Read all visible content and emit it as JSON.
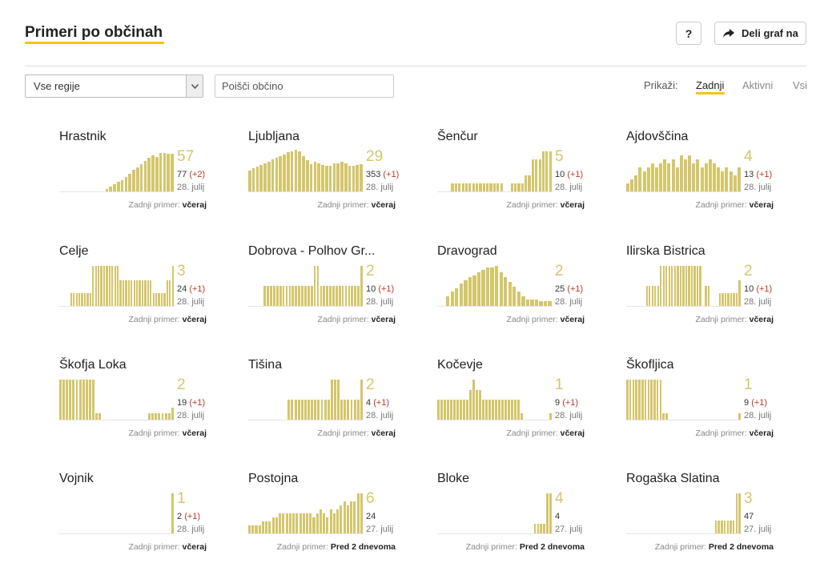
{
  "header": {
    "title": "Primeri po občinah",
    "help_label": "?",
    "share_label": "Deli graf na"
  },
  "filters": {
    "region_select_value": "Vse regije",
    "search_placeholder": "Poišči občino",
    "show_label": "Prikaži:",
    "options": [
      "Zadnji",
      "Aktivni",
      "Vsi"
    ],
    "active_option": "Zadnji"
  },
  "colors": {
    "accent": "#f5c518",
    "bar": "#d4c66c",
    "delta": "#c0392b"
  },
  "icons": {
    "share": "share-arrow-icon",
    "dropdown": "chevron-down-icon"
  },
  "cards": [
    {
      "name": "Hrastnik",
      "big": "57",
      "total": "77",
      "delta": "(+2)",
      "date": "28. julij",
      "last_label": "Zadnji primer:",
      "last_value": "včeraj",
      "bars": [
        0,
        0,
        0,
        0,
        0,
        0,
        0,
        0,
        0,
        0,
        0,
        0,
        3,
        6,
        9,
        12,
        14,
        18,
        22,
        27,
        30,
        34,
        38,
        42,
        45,
        43,
        48,
        48,
        47,
        47
      ]
    },
    {
      "name": "Ljubljana",
      "big": "29",
      "total": "353",
      "delta": "(+1)",
      "date": "28. julij",
      "last_label": "Zadnji primer:",
      "last_value": "včeraj",
      "bars": [
        26,
        29,
        31,
        33,
        35,
        37,
        40,
        42,
        44,
        46,
        49,
        50,
        52,
        50,
        44,
        39,
        34,
        37,
        35,
        33,
        32,
        32,
        35,
        35,
        37,
        35,
        32,
        32,
        33,
        34
      ]
    },
    {
      "name": "Šenčur",
      "big": "5",
      "total": "10",
      "delta": "(+1)",
      "date": "28. julij",
      "last_label": "Zadnji primer:",
      "last_value": "včeraj",
      "bars": [
        0,
        0,
        0,
        0,
        10,
        10,
        10,
        10,
        10,
        10,
        10,
        10,
        10,
        10,
        10,
        10,
        10,
        10,
        10,
        0,
        0,
        10,
        10,
        10,
        10,
        20,
        20,
        40,
        40,
        40,
        50,
        50,
        50
      ]
    },
    {
      "name": "Ajdovščina",
      "big": "4",
      "total": "13",
      "delta": "(+1)",
      "date": "28. julij",
      "last_label": "Zadnji primer:",
      "last_value": "včeraj",
      "bars": [
        10,
        15,
        20,
        30,
        25,
        30,
        35,
        30,
        35,
        40,
        35,
        40,
        30,
        45,
        40,
        45,
        35,
        40,
        30,
        35,
        40,
        35,
        30,
        25,
        30,
        25,
        20,
        30
      ]
    },
    {
      "name": "Celje",
      "big": "3",
      "total": "24",
      "delta": "(+1)",
      "date": "28. julij",
      "last_label": "Zadnji primer:",
      "last_value": "včeraj",
      "bars": [
        0,
        0,
        0,
        0,
        16,
        16,
        16,
        16,
        16,
        16,
        16,
        16,
        50,
        50,
        50,
        50,
        50,
        50,
        50,
        50,
        50,
        50,
        32,
        32,
        32,
        32,
        32,
        32,
        32,
        32,
        32,
        32,
        32,
        32,
        16,
        16,
        16,
        16,
        16,
        32,
        32,
        50
      ]
    },
    {
      "name": "Dobrova - Polhov Gr...",
      "big": "2",
      "total": "10",
      "delta": "(+1)",
      "date": "28. julij",
      "last_label": "Zadnji primer:",
      "last_value": "včeraj",
      "bars": [
        0,
        0,
        0,
        0,
        0,
        25,
        25,
        25,
        25,
        25,
        25,
        25,
        25,
        25,
        25,
        25,
        25,
        25,
        25,
        25,
        25,
        50,
        50,
        25,
        25,
        25,
        25,
        25,
        25,
        25,
        25,
        25,
        25,
        25,
        25,
        25,
        50
      ]
    },
    {
      "name": "Dravograd",
      "big": "2",
      "total": "25",
      "delta": "(+1)",
      "date": "28. julij",
      "last_label": "Zadnji primer:",
      "last_value": "včeraj",
      "bars": [
        0,
        0,
        12,
        18,
        22,
        28,
        32,
        36,
        38,
        42,
        45,
        48,
        48,
        50,
        42,
        36,
        30,
        24,
        18,
        12,
        8,
        8,
        8,
        6,
        6,
        6
      ]
    },
    {
      "name": "Ilirska Bistrica",
      "big": "2",
      "total": "10",
      "delta": "(+1)",
      "date": "28. julij",
      "last_label": "Zadnji primer:",
      "last_value": "včeraj",
      "bars": [
        0,
        0,
        0,
        0,
        0,
        0,
        0,
        25,
        25,
        25,
        25,
        25,
        50,
        50,
        50,
        50,
        50,
        50,
        50,
        50,
        50,
        50,
        50,
        50,
        50,
        50,
        50,
        0,
        25,
        25,
        0,
        0,
        0,
        16,
        16,
        16,
        16,
        16,
        16,
        16,
        32
      ]
    },
    {
      "name": "Škofja Loka",
      "big": "2",
      "total": "19",
      "delta": "(+1)",
      "date": "28. julij",
      "last_label": "Zadnji primer:",
      "last_value": "včeraj",
      "bars": [
        50,
        50,
        50,
        50,
        50,
        50,
        50,
        50,
        50,
        50,
        50,
        8,
        8,
        0,
        0,
        0,
        0,
        0,
        0,
        0,
        0,
        0,
        0,
        0,
        0,
        0,
        0,
        8,
        8,
        8,
        8,
        8,
        8,
        8,
        15
      ]
    },
    {
      "name": "Tišina",
      "big": "2",
      "total": "4",
      "delta": "(+1)",
      "date": "28. julij",
      "last_label": "Zadnji primer:",
      "last_value": "včeraj",
      "bars": [
        0,
        0,
        0,
        0,
        0,
        0,
        0,
        0,
        0,
        0,
        0,
        0,
        25,
        25,
        25,
        25,
        25,
        25,
        25,
        25,
        25,
        25,
        25,
        25,
        25,
        50,
        50,
        50,
        25,
        25,
        25,
        25,
        25,
        25,
        50
      ]
    },
    {
      "name": "Kočevje",
      "big": "1",
      "total": "9",
      "delta": "(+1)",
      "date": "28. julij",
      "last_label": "Zadnji primer:",
      "last_value": "včeraj",
      "bars": [
        25,
        25,
        25,
        25,
        25,
        25,
        25,
        25,
        25,
        25,
        37,
        50,
        37,
        37,
        25,
        25,
        25,
        25,
        25,
        25,
        25,
        25,
        25,
        25,
        25,
        25,
        8,
        0,
        0,
        0,
        0,
        0,
        0,
        0,
        0,
        8
      ]
    },
    {
      "name": "Škofljica",
      "big": "1",
      "total": "9",
      "delta": "(+1)",
      "date": "28. julij",
      "last_label": "Zadnji primer:",
      "last_value": "včeraj",
      "bars": [
        50,
        50,
        50,
        50,
        50,
        50,
        50,
        50,
        50,
        50,
        50,
        50,
        8,
        8,
        0,
        0,
        0,
        0,
        0,
        0,
        0,
        0,
        0,
        0,
        0,
        0,
        0,
        0,
        0,
        0,
        0,
        0,
        0,
        0,
        0,
        0,
        0,
        8
      ]
    },
    {
      "name": "Vojnik",
      "big": "1",
      "total": "2",
      "delta": "(+1)",
      "date": "28. julij",
      "last_label": "Zadnji primer:",
      "last_value": "včeraj",
      "bars": [
        0,
        0,
        0,
        0,
        0,
        0,
        0,
        0,
        0,
        0,
        0,
        0,
        0,
        0,
        0,
        0,
        0,
        0,
        0,
        0,
        0,
        0,
        0,
        0,
        0,
        0,
        0,
        0,
        0,
        0,
        0,
        0,
        0,
        0,
        0,
        50
      ]
    },
    {
      "name": "Postojna",
      "big": "6",
      "total": "24",
      "delta": "",
      "date": "27. julij",
      "last_label": "Zadnji primer:",
      "last_value": "Pred 2 dnevoma",
      "bars": [
        10,
        10,
        10,
        10,
        15,
        15,
        15,
        20,
        20,
        25,
        25,
        25,
        25,
        25,
        25,
        25,
        25,
        25,
        25,
        20,
        25,
        30,
        25,
        20,
        30,
        25,
        30,
        35,
        40,
        35,
        40,
        40,
        50,
        50
      ]
    },
    {
      "name": "Bloke",
      "big": "4",
      "total": "4",
      "delta": "",
      "date": "27. julij",
      "last_label": "Zadnji primer:",
      "last_value": "Pred 2 dnevoma",
      "bars": [
        0,
        0,
        0,
        0,
        0,
        0,
        0,
        0,
        0,
        0,
        0,
        0,
        0,
        0,
        0,
        0,
        0,
        0,
        0,
        0,
        0,
        0,
        0,
        0,
        0,
        0,
        0,
        0,
        0,
        0,
        0,
        12,
        12,
        12,
        12,
        50,
        50
      ]
    },
    {
      "name": "Rogaška Slatina",
      "big": "3",
      "total": "47",
      "delta": "",
      "date": "27. julij",
      "last_label": "Zadnji primer:",
      "last_value": "Pred 2 dnevoma",
      "bars": [
        0,
        0,
        0,
        0,
        0,
        0,
        0,
        0,
        0,
        0,
        0,
        0,
        0,
        0,
        0,
        0,
        0,
        0,
        0,
        0,
        0,
        0,
        0,
        0,
        0,
        0,
        0,
        0,
        0,
        0,
        16,
        16,
        16,
        16,
        16,
        16,
        16,
        50,
        50
      ]
    }
  ]
}
